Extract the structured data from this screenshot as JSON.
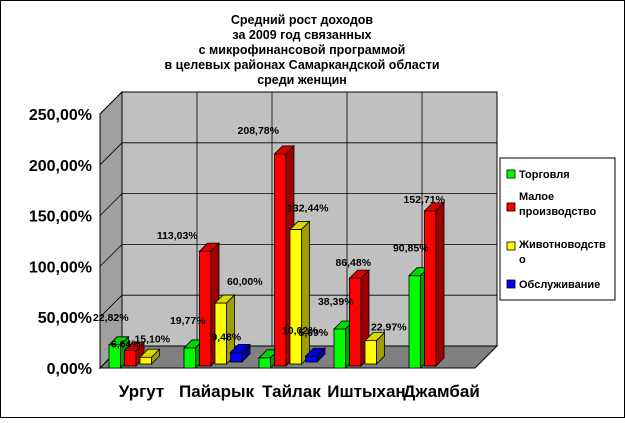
{
  "chart_data": {
    "type": "bar",
    "title_lines": [
      "Средний рост доходов",
      "за 2009 год связанных",
      "с микрофинансовой программой",
      "в целевых районах Самаркандской области",
      "среди женщин"
    ],
    "categories": [
      "Ургут",
      "Пайарык",
      "Тайлак",
      "Иштыхан",
      "Джамбай"
    ],
    "y_ticks": [
      "0,00%",
      "50,00%",
      "100,00%",
      "150,00%",
      "200,00%",
      "250,00%"
    ],
    "ylim": [
      0,
      250
    ],
    "series": [
      {
        "name": "Торговля",
        "color": "#00ff00",
        "values": [
          22.82,
          19.77,
          10.02,
          38.39,
          90.85
        ],
        "labels": [
          "22,82%",
          "19,77%",
          "10,02%",
          "38,39%",
          "90,85%"
        ]
      },
      {
        "name": "Малое производство",
        "legend_lines": [
          "Малое",
          "производство"
        ],
        "color": "#ff0000",
        "values": [
          15.1,
          113.03,
          208.78,
          86.48,
          152.71
        ],
        "labels": [
          "15,10%",
          "113,03%",
          "208,78%",
          "86,48%",
          "152,71%"
        ]
      },
      {
        "name": "Животноводство",
        "legend_lines": [
          "Животноводств",
          "о"
        ],
        "color": "#ffff00",
        "values": [
          6.64,
          60.0,
          132.44,
          22.97,
          null
        ],
        "labels": [
          "6,64%",
          "60,00%",
          "132,44%",
          "22,97%",
          ""
        ]
      },
      {
        "name": "Обслуживание",
        "color": "#0000ff",
        "values": [
          null,
          9.48,
          5.69,
          null,
          null
        ],
        "labels": [
          "",
          "9,48%",
          "5,69%",
          "",
          ""
        ]
      }
    ],
    "grid": "horizontal",
    "legend_position": "right"
  }
}
